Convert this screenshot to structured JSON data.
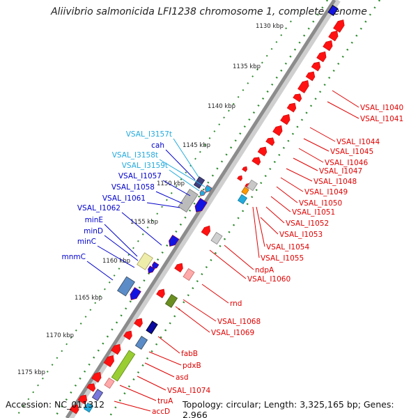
{
  "title": "Aliivibrio salmonicida LFI1238 chromosome 1, complete genome",
  "footer": {
    "accession": "Accession: NC_011312",
    "topology": "Topology: circular; Length: 3,325,165 bp; Genes: 2,966"
  },
  "colors": {
    "backbone": "#8c8c8c",
    "tick_dots": "#2e8b2e",
    "forward_label": "#e00000",
    "reverse_label": "#0000cc",
    "rna_label": "#22aadd",
    "cds_red": "#ff1111",
    "cds_blue": "#1414e0"
  },
  "ticks": [
    {
      "label": "1130 kbp"
    },
    {
      "label": "1135 kbp"
    },
    {
      "label": "1140 kbp"
    },
    {
      "label": "1145 kbp"
    },
    {
      "label": "1150 kbp"
    },
    {
      "label": "1155 kbp"
    },
    {
      "label": "1160 kbp"
    },
    {
      "label": "1165 kbp"
    },
    {
      "label": "1170 kbp"
    },
    {
      "label": "1175 kbp"
    }
  ],
  "labels_right": [
    {
      "text": "VSAL_I1040"
    },
    {
      "text": "VSAL_I1041"
    },
    {
      "text": "VSAL_I1044"
    },
    {
      "text": "VSAL_I1045"
    },
    {
      "text": "VSAL_I1046"
    },
    {
      "text": "VSAL_I1047"
    },
    {
      "text": "VSAL_I1048"
    },
    {
      "text": "VSAL_I1049"
    },
    {
      "text": "VSAL_I1050"
    },
    {
      "text": "VSAL_I1051"
    },
    {
      "text": "VSAL_I1052"
    },
    {
      "text": "VSAL_I1053"
    },
    {
      "text": "VSAL_I1054"
    },
    {
      "text": "VSAL_I1055"
    },
    {
      "text": "ndpA"
    },
    {
      "text": "VSAL_I1060"
    },
    {
      "text": "rnd"
    },
    {
      "text": "VSAL_I1068"
    },
    {
      "text": "VSAL_I1069"
    },
    {
      "text": "fabB"
    },
    {
      "text": "pdxB"
    },
    {
      "text": "asd"
    },
    {
      "text": "VSAL_I1074"
    },
    {
      "text": "truA"
    },
    {
      "text": "accD"
    }
  ],
  "labels_left": [
    {
      "text": "VSAL_I3157t",
      "kind": "rna"
    },
    {
      "text": "cah",
      "kind": "reverse"
    },
    {
      "text": "VSAL_I3158t",
      "kind": "rna"
    },
    {
      "text": "VSAL_I3159t",
      "kind": "rna"
    },
    {
      "text": "VSAL_I1057",
      "kind": "reverse"
    },
    {
      "text": "VSAL_I1058",
      "kind": "reverse"
    },
    {
      "text": "VSAL_I1061",
      "kind": "reverse"
    },
    {
      "text": "VSAL_I1062",
      "kind": "reverse"
    },
    {
      "text": "minE",
      "kind": "reverse"
    },
    {
      "text": "minD",
      "kind": "reverse"
    },
    {
      "text": "minC",
      "kind": "reverse"
    },
    {
      "text": "mnmC",
      "kind": "reverse"
    }
  ]
}
